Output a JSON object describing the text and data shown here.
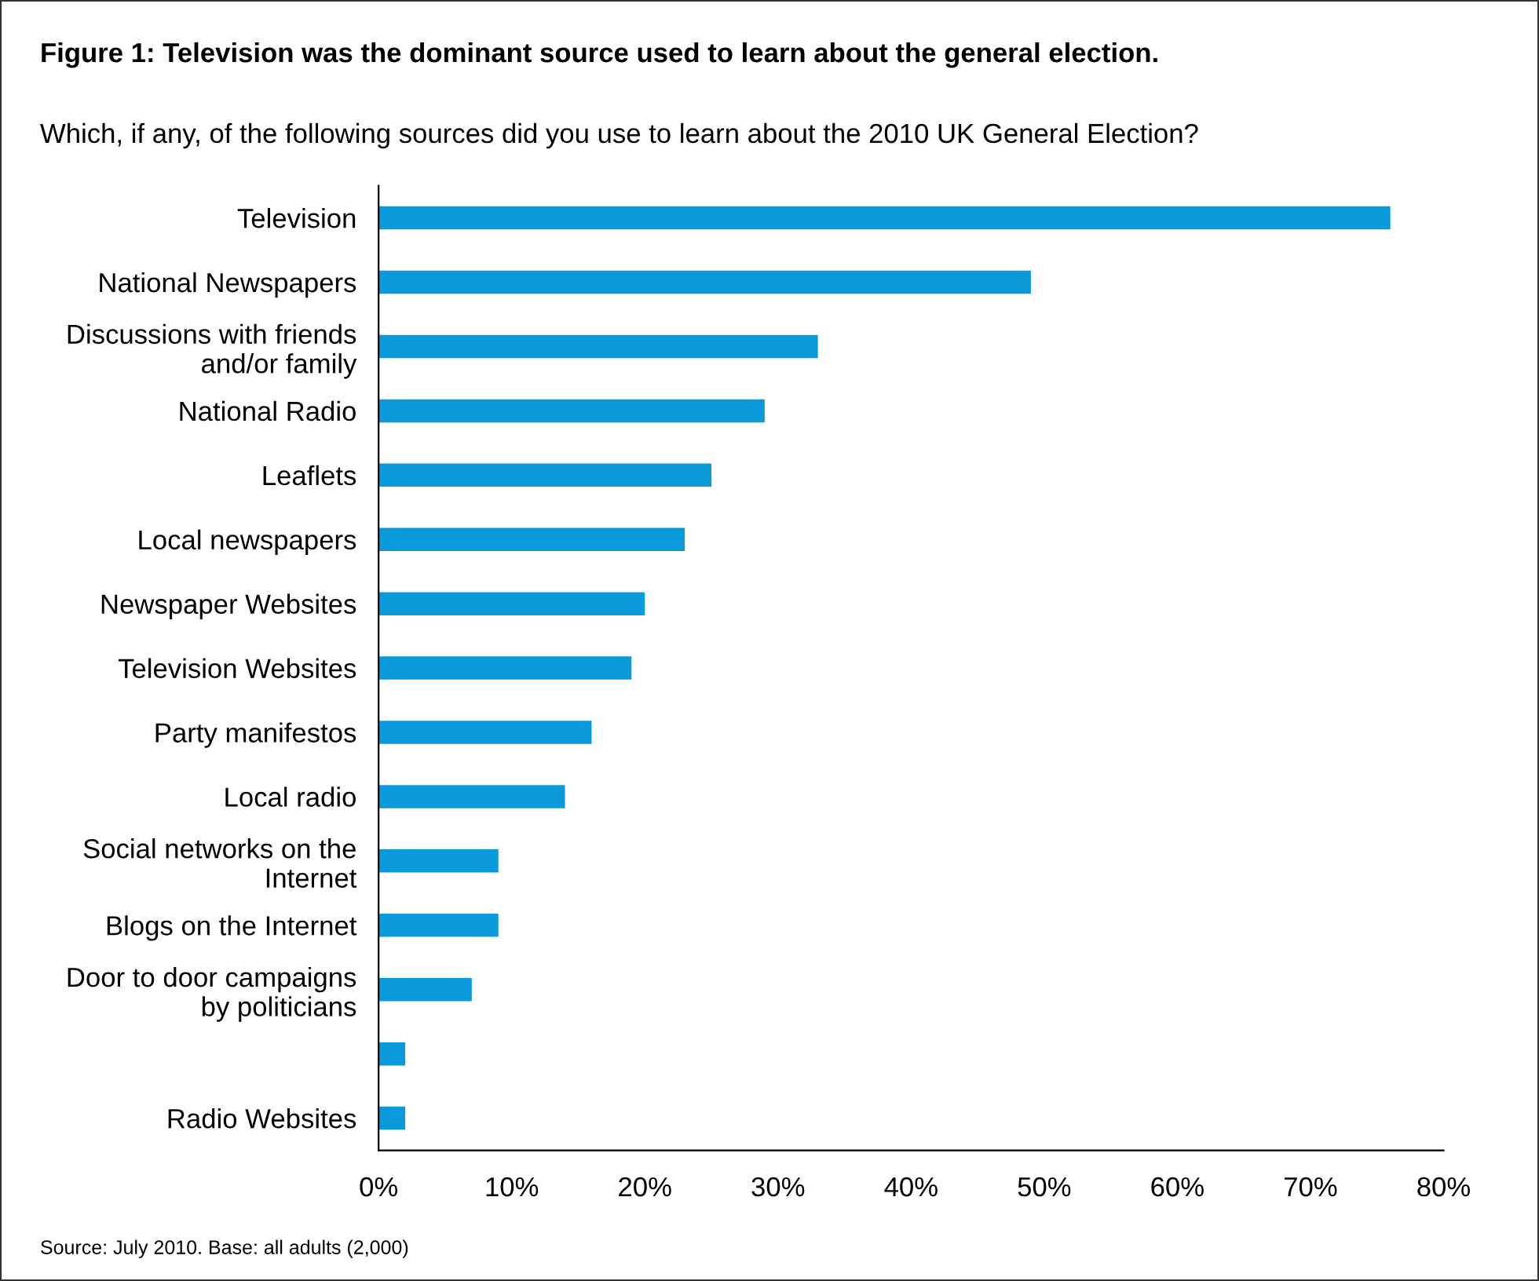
{
  "chart_data": {
    "type": "bar",
    "orientation": "horizontal",
    "title": "Figure 1: Television was the dominant source used to learn about the general election.",
    "subtitle": "Which, if any, of the following sources did you use to learn about the 2010 UK General Election?",
    "categories": [
      "Television",
      "National Newspapers",
      "Discussions with friends\nand/or family",
      "National Radio",
      "Leaflets",
      "Local newspapers",
      "Newspaper Websites",
      "Television Websites",
      "Party manifestos",
      "Local radio",
      "Social networks on the\nInternet",
      "Blogs on the Internet",
      "Door to door campaigns\nby politicians",
      null,
      "Radio Websites"
    ],
    "values": [
      76,
      49,
      33,
      29,
      25,
      23,
      20,
      19,
      16,
      14,
      9,
      9,
      7,
      2,
      2
    ],
    "color": "#0a9ad9",
    "xlim": [
      0,
      80
    ],
    "xticks": [
      {
        "value": 0,
        "label": "0%"
      },
      {
        "value": 10,
        "label": "10%"
      },
      {
        "value": 20,
        "label": "20%"
      },
      {
        "value": 30,
        "label": "30%"
      },
      {
        "value": 40,
        "label": "40%"
      },
      {
        "value": 50,
        "label": "50%"
      },
      {
        "value": 60,
        "label": "60%"
      },
      {
        "value": 70,
        "label": "70%"
      },
      {
        "value": 80,
        "label": "80%"
      }
    ],
    "grid": false,
    "legend": false,
    "annotations": [
      "Source: July 2010. Base: all adults (2,000)"
    ]
  }
}
